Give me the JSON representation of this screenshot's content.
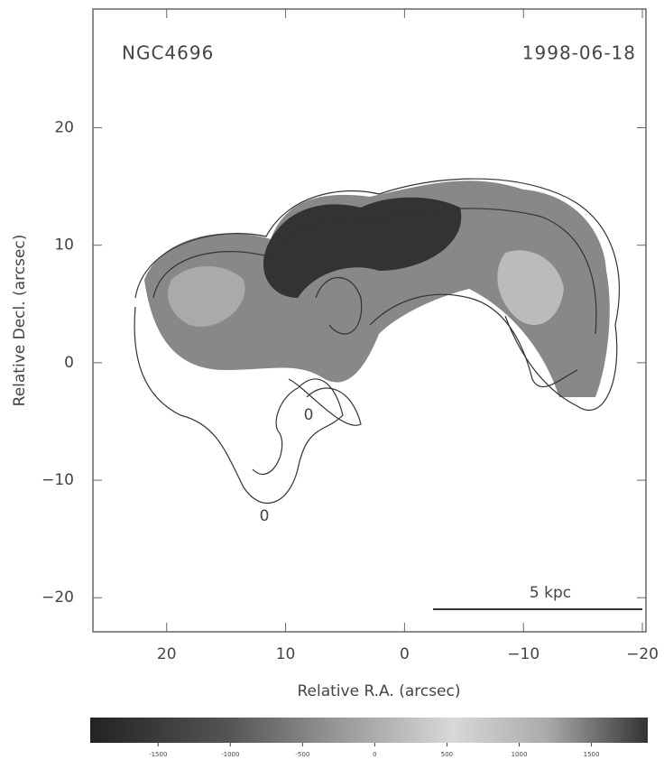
{
  "chart_data": {
    "type": "image",
    "title": "NGC4696",
    "subtitle": "1998-06-18",
    "x_label": "Relative R.A. (arcsec)",
    "y_label": "Relative Decl. (arcsec)",
    "xlim": [
      26.2,
      -20.3
    ],
    "ylim": [
      -22.9,
      30.1
    ],
    "xticks": [
      20,
      10,
      0,
      {
        "value": -10,
        "label": "−10"
      },
      {
        "value": -20,
        "label": "−20"
      }
    ],
    "yticks": [
      20,
      10,
      0,
      {
        "value": -10,
        "label": "−10"
      },
      {
        "value": -20,
        "label": "−20"
      }
    ],
    "annotations": [
      "5 kpc",
      "0",
      "0"
    ],
    "colorbar": {
      "lim": [
        -1970,
        1890
      ],
      "ticks": [
        -1500,
        -1000,
        -500,
        0,
        500,
        1000,
        1500
      ]
    }
  }
}
